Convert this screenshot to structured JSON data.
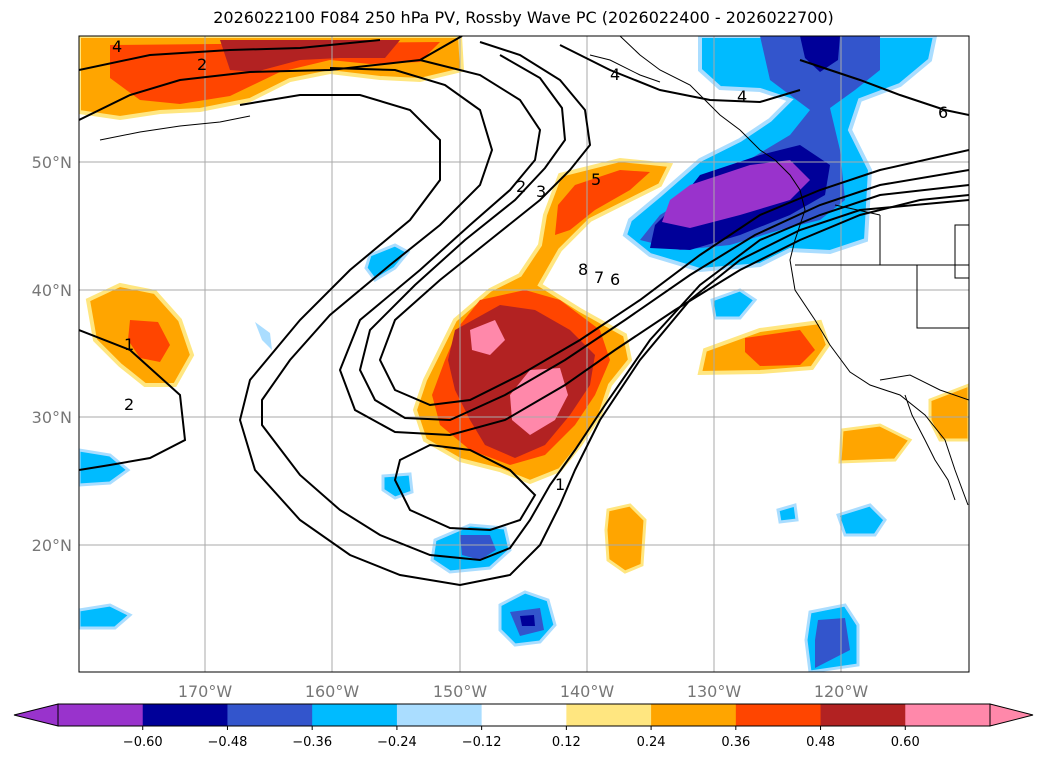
{
  "title": "2026022100 F084 250 hPa PV, Rossby Wave PC (2026022400 - 2026022700)",
  "lat_labels": [
    "50°N",
    "40°N",
    "30°N",
    "20°N"
  ],
  "lon_labels": [
    "170°W",
    "160°W",
    "150°W",
    "140°W",
    "130°W",
    "120°W"
  ],
  "contour_labels": [
    "4",
    "2",
    "1",
    "2",
    "2",
    "3",
    "5",
    "8",
    "7",
    "6",
    "1",
    "4",
    "4",
    "6"
  ],
  "colorbar": {
    "ticks": [
      "−0.60",
      "−0.48",
      "−0.36",
      "−0.24",
      "−0.12",
      "0.12",
      "0.24",
      "0.36",
      "0.48",
      "0.60"
    ],
    "colors": [
      "#9933cc",
      "#000099",
      "#3355cc",
      "#00bbff",
      "#aaddff",
      "#ffffff",
      "#ffe680",
      "#ffa500",
      "#ff4500",
      "#b22222",
      "#ff88aa",
      "#ff88aa"
    ]
  }
}
